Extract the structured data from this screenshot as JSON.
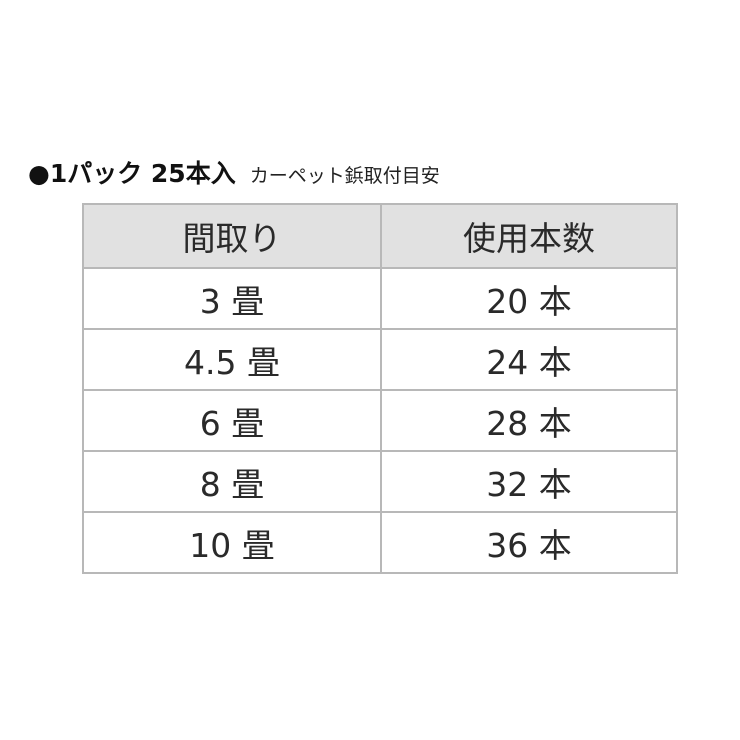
{
  "title": {
    "main": "●1パック 25本入",
    "sub": "カーペット鋲取付目安"
  },
  "table": {
    "headers": [
      "間取り",
      "使用本数"
    ],
    "rows": [
      [
        "3 畳",
        "20 本"
      ],
      [
        "4.5 畳",
        "24 本"
      ],
      [
        "6 畳",
        "28 本"
      ],
      [
        "8 畳",
        "32 本"
      ],
      [
        "10 畳",
        "36 本"
      ]
    ]
  },
  "colors": {
    "header_bg": "#e1e1e1",
    "border": "#b8b8b8"
  }
}
